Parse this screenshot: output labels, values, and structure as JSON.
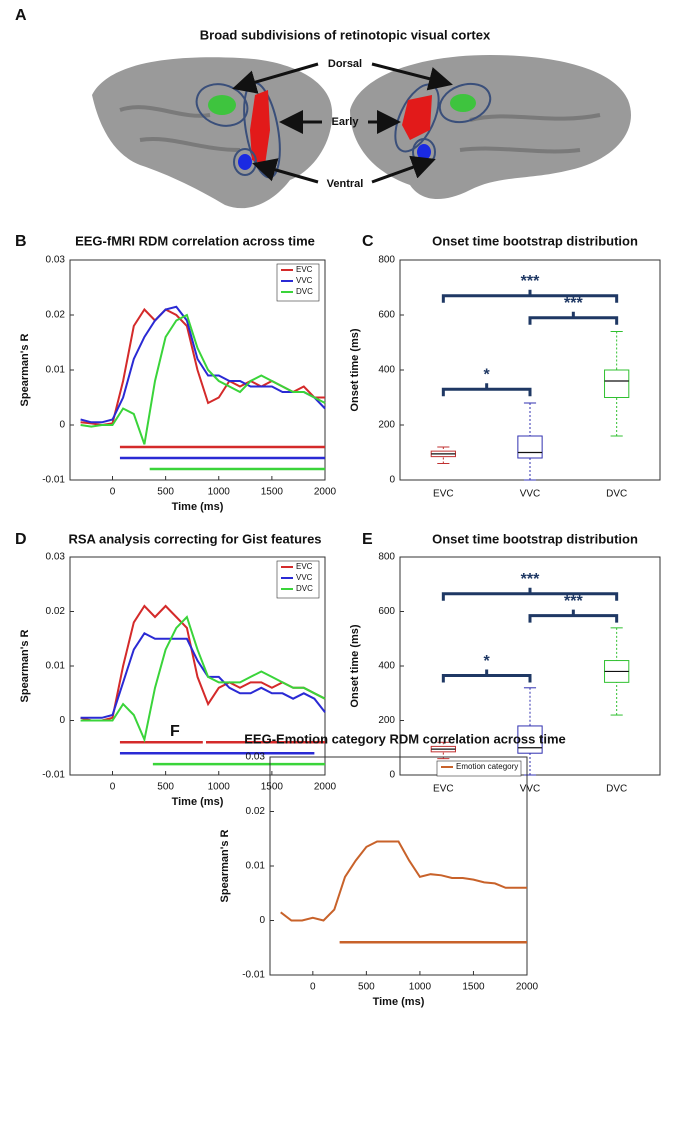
{
  "brain": {
    "label": "A",
    "title": "Broad subdivisions of retinotopic visual cortex",
    "labels": [
      "Dorsal",
      "Early",
      "Ventral"
    ]
  },
  "chart_data": [
    {
      "type": "line",
      "label": "B",
      "title": "EEG-fMRI RDM correlation across time",
      "xlabel": "Time (ms)",
      "ylabel": "Spearman's R",
      "xlim": [
        -400,
        2000
      ],
      "xticks": [
        0,
        500,
        1000,
        1500,
        2000
      ],
      "ylim": [
        -0.01,
        0.03
      ],
      "yticks": [
        -0.01,
        0,
        0.01,
        0.02,
        0.03
      ],
      "x": [
        -300,
        -200,
        -100,
        0,
        100,
        200,
        300,
        400,
        500,
        600,
        700,
        800,
        900,
        1000,
        1100,
        1200,
        1300,
        1400,
        1500,
        1600,
        1700,
        1800,
        1900,
        2000
      ],
      "series": [
        {
          "name": "EVC",
          "color": "#d42a2a",
          "values": [
            0.0005,
            0.0003,
            0,
            0.0003,
            0.008,
            0.018,
            0.021,
            0.019,
            0.021,
            0.02,
            0.018,
            0.01,
            0.004,
            0.005,
            0.008,
            0.007,
            0.008,
            0.007,
            0.008,
            0.007,
            0.006,
            0.007,
            0.005,
            0.005
          ],
          "sig_y": -0.004,
          "sig_ranges": [
            [
              70,
              2000
            ]
          ]
        },
        {
          "name": "VVC",
          "color": "#2a2ad4",
          "values": [
            0.001,
            0.0005,
            0.0005,
            0.001,
            0.005,
            0.012,
            0.016,
            0.019,
            0.021,
            0.0215,
            0.019,
            0.012,
            0.009,
            0.009,
            0.008,
            0.008,
            0.007,
            0.007,
            0.007,
            0.006,
            0.006,
            0.006,
            0.005,
            0.003
          ],
          "sig_y": -0.006,
          "sig_ranges": [
            [
              70,
              2000
            ]
          ]
        },
        {
          "name": "DVC",
          "color": "#3ad43a",
          "values": [
            0,
            -0.0003,
            0,
            0,
            0.003,
            0.002,
            -0.0035,
            0.008,
            0.016,
            0.019,
            0.02,
            0.014,
            0.01,
            0.008,
            0.007,
            0.006,
            0.008,
            0.009,
            0.008,
            0.007,
            0.006,
            0.006,
            0.005,
            0.004
          ],
          "sig_y": -0.008,
          "sig_ranges": [
            [
              350,
              2000
            ]
          ]
        }
      ]
    },
    {
      "type": "box",
      "label": "C",
      "title": "Onset time bootstrap distribution",
      "ylabel": "Onset time (ms)",
      "ylim": [
        0,
        800
      ],
      "yticks": [
        0,
        200,
        400,
        600,
        800
      ],
      "categories": [
        "EVC",
        "VVC",
        "DVC"
      ],
      "colors": [
        "#c03030",
        "#3030b0",
        "#30c030"
      ],
      "min": [
        60,
        0,
        160
      ],
      "q1": [
        85,
        80,
        300
      ],
      "median": [
        95,
        100,
        360
      ],
      "q3": [
        105,
        160,
        400
      ],
      "max": [
        120,
        280,
        540
      ],
      "brackets": [
        {
          "from": 0,
          "to": 1,
          "y": 330,
          "label": "*"
        },
        {
          "from": 1,
          "to": 2,
          "y": 590,
          "label": "***"
        },
        {
          "from": 0,
          "to": 2,
          "y": 670,
          "label": "***"
        }
      ]
    },
    {
      "type": "line",
      "label": "D",
      "title": "RSA analysis correcting for Gist features",
      "xlabel": "Time (ms)",
      "ylabel": "Spearman's R",
      "xlim": [
        -400,
        2000
      ],
      "xticks": [
        0,
        500,
        1000,
        1500,
        2000
      ],
      "ylim": [
        -0.01,
        0.03
      ],
      "yticks": [
        -0.01,
        0,
        0.01,
        0.02,
        0.03
      ],
      "x": [
        -300,
        -200,
        -100,
        0,
        100,
        200,
        300,
        400,
        500,
        600,
        700,
        800,
        900,
        1000,
        1100,
        1200,
        1300,
        1400,
        1500,
        1600,
        1700,
        1800,
        1900,
        2000
      ],
      "series": [
        {
          "name": "EVC",
          "color": "#d42a2a",
          "values": [
            0.0005,
            0,
            0,
            0.0005,
            0.01,
            0.018,
            0.021,
            0.019,
            0.021,
            0.019,
            0.017,
            0.008,
            0.003,
            0.006,
            0.007,
            0.006,
            0.007,
            0.007,
            0.006,
            0.007,
            0.006,
            0.006,
            0.005,
            0.004
          ],
          "sig_y": -0.004,
          "sig_ranges": [
            [
              70,
              850
            ],
            [
              880,
              2000
            ]
          ]
        },
        {
          "name": "VVC",
          "color": "#2a2ad4",
          "values": [
            0.0005,
            0.0005,
            0.0005,
            0.001,
            0.007,
            0.013,
            0.016,
            0.015,
            0.015,
            0.015,
            0.015,
            0.011,
            0.008,
            0.008,
            0.006,
            0.005,
            0.005,
            0.006,
            0.005,
            0.005,
            0.004,
            0.005,
            0.004,
            0.0015
          ],
          "sig_y": -0.006,
          "sig_ranges": [
            [
              70,
              1900
            ]
          ]
        },
        {
          "name": "DVC",
          "color": "#3ad43a",
          "values": [
            0,
            0,
            0,
            0,
            0.003,
            0.001,
            -0.0035,
            0.006,
            0.013,
            0.017,
            0.019,
            0.013,
            0.008,
            0.007,
            0.007,
            0.007,
            0.008,
            0.009,
            0.008,
            0.007,
            0.006,
            0.006,
            0.005,
            0.004
          ],
          "sig_y": -0.008,
          "sig_ranges": [
            [
              380,
              2000
            ]
          ]
        }
      ]
    },
    {
      "type": "box",
      "label": "E",
      "title": "Onset time bootstrap distribution",
      "ylabel": "Onset time (ms)",
      "ylim": [
        0,
        800
      ],
      "yticks": [
        0,
        200,
        400,
        600,
        800
      ],
      "categories": [
        "EVC",
        "VVC",
        "DVC"
      ],
      "colors": [
        "#c03030",
        "#3030b0",
        "#30c030"
      ],
      "min": [
        60,
        0,
        220
      ],
      "q1": [
        85,
        80,
        340
      ],
      "median": [
        95,
        100,
        380
      ],
      "q3": [
        105,
        180,
        420
      ],
      "max": [
        120,
        320,
        540
      ],
      "brackets": [
        {
          "from": 0,
          "to": 1,
          "y": 365,
          "label": "*"
        },
        {
          "from": 1,
          "to": 2,
          "y": 585,
          "label": "***"
        },
        {
          "from": 0,
          "to": 2,
          "y": 665,
          "label": "***"
        }
      ]
    },
    {
      "type": "line",
      "label": "F",
      "title": "EEG-Emotion category RDM correlation across time",
      "xlabel": "Time (ms)",
      "ylabel": "Spearman's R",
      "xlim": [
        -400,
        2000
      ],
      "xticks": [
        0,
        500,
        1000,
        1500,
        2000
      ],
      "ylim": [
        -0.01,
        0.03
      ],
      "yticks": [
        -0.01,
        0,
        0.01,
        0.02,
        0.03
      ],
      "x": [
        -300,
        -200,
        -100,
        0,
        100,
        200,
        300,
        400,
        500,
        600,
        700,
        800,
        900,
        1000,
        1100,
        1200,
        1300,
        1400,
        1500,
        1600,
        1700,
        1800,
        1900,
        2000
      ],
      "series": [
        {
          "name": "Emotion category",
          "color": "#c8622a",
          "values": [
            0.0015,
            0,
            0,
            0.0005,
            0,
            0.002,
            0.008,
            0.011,
            0.0135,
            0.0145,
            0.0145,
            0.0145,
            0.011,
            0.008,
            0.0085,
            0.0083,
            0.0078,
            0.0078,
            0.0075,
            0.007,
            0.0068,
            0.006,
            0.006,
            0.006
          ],
          "sig_y": -0.004,
          "sig_ranges": [
            [
              250,
              2000
            ]
          ]
        }
      ]
    }
  ]
}
